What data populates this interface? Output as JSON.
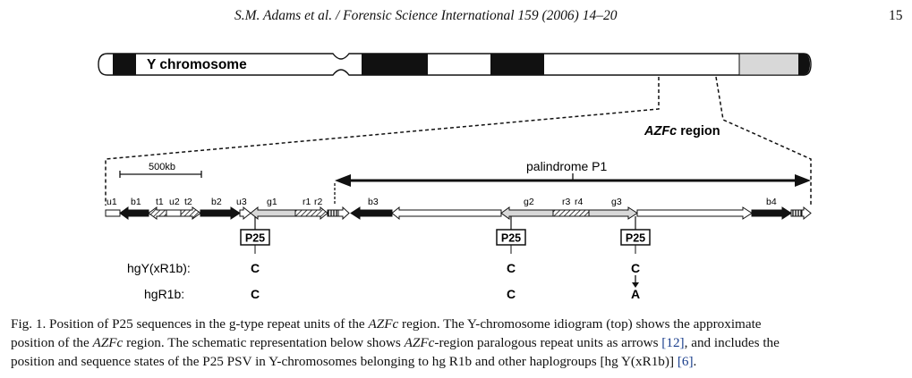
{
  "header": {
    "running_head": "S.M. Adams et al. / Forensic Science International 159 (2006) 14–20",
    "page_number": "15"
  },
  "figure": {
    "chromosome_label": "Y chromosome",
    "region_label_italic": "AZFc",
    "region_label_rest": " region",
    "scale_label": "500kb",
    "palindrome_label": "palindrome P1",
    "units": [
      "u1",
      "b1",
      "t1",
      "u2",
      "t2",
      "b2",
      "u3",
      "g1",
      "r1",
      "r2",
      "b3",
      "g2",
      "r3",
      "r4",
      "g3",
      "b4"
    ],
    "psv_name": "P25",
    "rows": [
      {
        "label": "hgY(xR1b):",
        "states": [
          "C",
          "C",
          "C"
        ]
      },
      {
        "label": "hgR1b:",
        "states": [
          "C",
          "C",
          "A"
        ]
      }
    ]
  },
  "caption": {
    "l1_a": "Fig. 1. Position of P25 sequences in the g-type repeat units of the ",
    "l1_i": "AZFc",
    "l1_b": " region. The Y-chromosome idiogram (top) shows the approximate",
    "l2_a": "position of the ",
    "l2_i": "AZFc",
    "l2_b": " region. The schematic representation below shows ",
    "l2_i2": "AZFc",
    "l2_c": "-region paralogous repeat units as arrows ",
    "l2_ref": "[12]",
    "l2_d": ", and includes the",
    "l3_a": "position and sequence states of the P25 PSV in Y-chromosomes belonging to hg R1b and other haplogroups [hg Y(xR1b)] ",
    "l3_ref": "[6]",
    "l3_b": "."
  },
  "colors": {
    "black": "#111111",
    "light_gray": "#d8d8d8",
    "link": "#1a3e8c"
  }
}
